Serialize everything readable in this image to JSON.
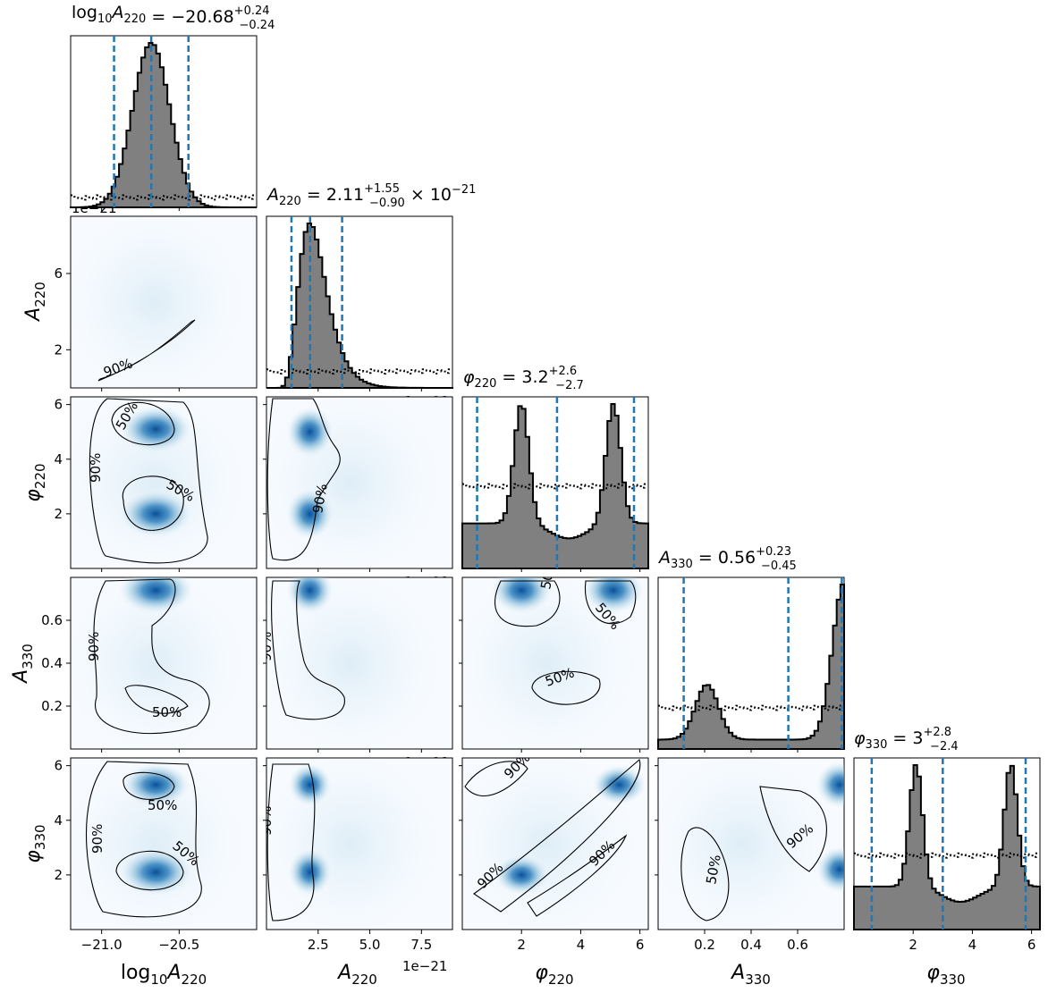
{
  "chart_data": {
    "type": "corner",
    "parameters": [
      {
        "key": "logA220",
        "label": "log10A220",
        "range": [
          -21.2,
          -20.0
        ]
      },
      {
        "key": "A220",
        "label": "A220",
        "range": [
          0.0,
          9.0
        ],
        "offset_text": "1e−21"
      },
      {
        "key": "phi220",
        "label": "φ220",
        "range": [
          0.0,
          6.283
        ]
      },
      {
        "key": "A330",
        "label": "A330",
        "range": [
          0.0,
          0.8
        ]
      },
      {
        "key": "phi330",
        "label": "φ330",
        "range": [
          0.0,
          6.283
        ]
      }
    ],
    "diagonal_titles": [
      {
        "param": "log10A220",
        "median": "−20.68",
        "plus": "+0.24",
        "minus": "−0.24",
        "suffix": ""
      },
      {
        "param": "A220",
        "median": "2.11",
        "plus": "+1.55",
        "minus": "−0.90",
        "suffix": "× 10−21"
      },
      {
        "param": "φ220",
        "median": "3.2",
        "plus": "+2.6",
        "minus": "−2.7",
        "suffix": ""
      },
      {
        "param": "A330",
        "median": "0.56",
        "plus": "+0.23",
        "minus": "−0.45",
        "suffix": ""
      },
      {
        "param": "φ330",
        "median": "3",
        "plus": "+2.8",
        "minus": "−2.4",
        "suffix": ""
      }
    ],
    "quantile_lines": [
      [
        -20.92,
        -20.68,
        -20.44
      ],
      [
        1.21,
        2.11,
        3.66
      ],
      [
        0.5,
        3.2,
        5.8
      ],
      [
        0.11,
        0.56,
        0.79
      ],
      [
        0.6,
        3.0,
        5.8
      ]
    ],
    "x_ticks": [
      [
        -21.0,
        -20.5
      ],
      [
        2.5,
        5.0,
        7.5
      ],
      [
        2,
        4,
        6
      ],
      [
        0.2,
        0.4,
        0.6
      ],
      [
        2,
        4,
        6
      ]
    ],
    "x_tick_labels": [
      [
        "−21.0",
        "−20.5"
      ],
      [
        "2.5",
        "5.0",
        "7.5"
      ],
      [
        "2",
        "4",
        "6"
      ],
      [
        "0.2",
        "0.4",
        "0.6"
      ],
      [
        "2",
        "4",
        "6"
      ]
    ],
    "y_ticks": [
      null,
      [
        2,
        6
      ],
      [
        2,
        4,
        6
      ],
      [
        0.2,
        0.4,
        0.6
      ],
      [
        2,
        4,
        6
      ]
    ],
    "y_tick_labels": [
      null,
      [
        "2",
        "6"
      ],
      [
        "2",
        "4",
        "6"
      ],
      [
        "0.2",
        "0.4",
        "0.6"
      ],
      [
        "2",
        "4",
        "6"
      ]
    ],
    "histograms": [
      {
        "shape": "unimodal",
        "center": -20.68,
        "width": 0.12,
        "peak": 1.0,
        "prior": 0.06
      },
      {
        "shape": "lognormal",
        "center": 2.1,
        "width": 0.7,
        "peak": 1.0,
        "prior": 0.1
      },
      {
        "shape": "bimodal",
        "modes": [
          2.0,
          5.1
        ],
        "width": 0.25,
        "base": 0.3,
        "peak": 1.0,
        "prior": 0.5
      },
      {
        "shape": "edge",
        "modes": [
          0.21,
          0.8
        ],
        "width": 0.05,
        "peak": 1.0,
        "prior": 0.25
      },
      {
        "shape": "bimodal",
        "modes": [
          2.1,
          5.3
        ],
        "width": 0.22,
        "base": 0.28,
        "peak": 1.0,
        "prior": 0.45
      }
    ],
    "contour_labels": [
      "50%",
      "90%"
    ],
    "prior_style": "dotted",
    "color": "#1f77b4"
  }
}
